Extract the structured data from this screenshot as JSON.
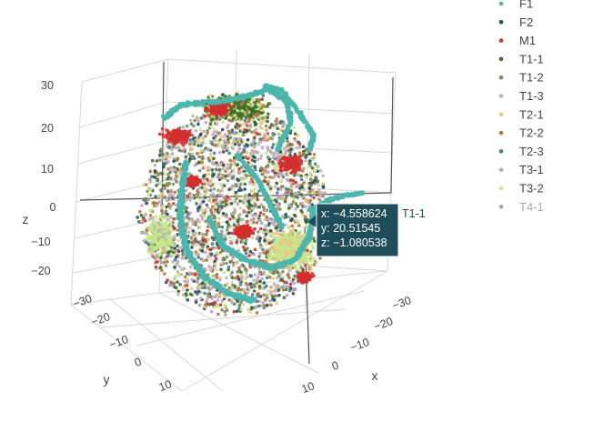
{
  "chart_data": {
    "type": "scatter",
    "dimensions": 3,
    "axes": {
      "x": {
        "title": "x",
        "ticks": [
          "−30",
          "−20",
          "−10",
          "0",
          "10"
        ]
      },
      "y": {
        "title": "y",
        "ticks": [
          "−30",
          "−20",
          "−10",
          "0",
          "10"
        ]
      },
      "z": {
        "title": "z",
        "ticks": [
          "30",
          "20",
          "10",
          "0",
          "−10",
          "−20"
        ]
      }
    },
    "legend": {
      "placement": "right",
      "series": [
        {
          "name": "F1",
          "color": "#4db6ac"
        },
        {
          "name": "F2",
          "color": "#1f4e5a"
        },
        {
          "name": "M1",
          "color": "#d32f2f"
        },
        {
          "name": "T1-1",
          "color": "#3e6b2a"
        },
        {
          "name": "T1-2",
          "color": "#7a8c6a"
        },
        {
          "name": "T1-3",
          "color": "#b9b9a8"
        },
        {
          "name": "T2-1",
          "color": "#e6c88a"
        },
        {
          "name": "T2-2",
          "color": "#a67c3d"
        },
        {
          "name": "T2-3",
          "color": "#4a7a8c"
        },
        {
          "name": "T3-1",
          "color": "#c9a0c0"
        },
        {
          "name": "T3-2",
          "color": "#c6e88a"
        },
        {
          "name": "T4-1",
          "color": "#a8a8a8",
          "dimmed": true
        }
      ]
    },
    "hover": {
      "x_line": "x: −4.558624",
      "y_line": "y: 20.51545",
      "z_line": "z: −1.080538",
      "series": "T1-1"
    }
  }
}
